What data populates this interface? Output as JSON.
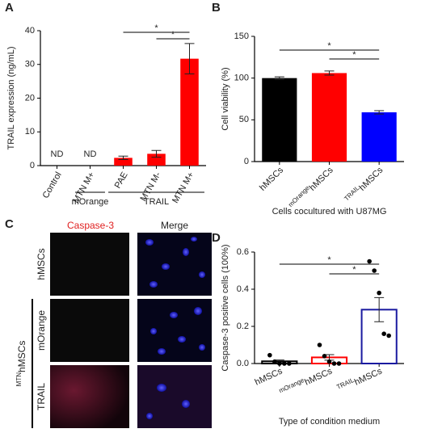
{
  "chart_data": [
    {
      "type": "bar",
      "panel": "A",
      "ylabel": "TRAIL expression (ng/mL)",
      "categories": [
        "Control",
        "MTN M+",
        "PAE",
        "MTN M-",
        "MTN M+"
      ],
      "values": [
        null,
        null,
        2.3,
        3.5,
        31.7
      ],
      "value_labels": [
        "ND",
        "ND",
        null,
        null,
        null
      ],
      "errors": [
        null,
        null,
        0.5,
        1.0,
        4.5
      ],
      "color": "#ff0000",
      "ylim": [
        0,
        40
      ],
      "yticks": [
        0,
        10,
        20,
        30,
        40
      ],
      "groups": [
        {
          "label": "mOrange",
          "from": 1,
          "to": 1
        },
        {
          "label": "TRAIL",
          "from": 2,
          "to": 4
        }
      ],
      "significance": [
        {
          "from": 2,
          "to": 4,
          "label": "*"
        },
        {
          "from": 3,
          "to": 4,
          "label": "*"
        }
      ]
    },
    {
      "type": "bar",
      "panel": "B",
      "ylabel": "Cell viability (%)",
      "xlabel": "Cells cocultured with U87MG",
      "categories": [
        "hMSCs",
        "hMSCs",
        "hMSCs"
      ],
      "category_superscripts": [
        null,
        "mOrange",
        "TRAIL"
      ],
      "values": [
        100,
        106,
        59
      ],
      "errors": [
        1.5,
        2.5,
        2
      ],
      "colors": [
        "#000000",
        "#ff0000",
        "#0000ff"
      ],
      "ylim": [
        0,
        150
      ],
      "yticks": [
        0,
        50,
        100,
        150
      ],
      "significance": [
        {
          "from": 0,
          "to": 2,
          "label": "*"
        },
        {
          "from": 1,
          "to": 2,
          "label": "*"
        }
      ]
    },
    {
      "type": "openbar",
      "panel": "D",
      "ylabel": "Caspase-3 positive cells (100%)",
      "xlabel": "Type of condition medium",
      "categories": [
        "hMSCs",
        "hMSCs",
        "hMSCs"
      ],
      "category_superscripts": [
        null,
        "mOrange",
        "TRAIL"
      ],
      "values": [
        0.012,
        0.033,
        0.29
      ],
      "errors": [
        0.007,
        0.015,
        0.065
      ],
      "colors": [
        "#000000",
        "#ff0000",
        "#1a1aa0"
      ],
      "points": [
        [
          0.045,
          0.01,
          0,
          0,
          0
        ],
        [
          0.1,
          0.04,
          0.01,
          0,
          0
        ],
        [
          0.55,
          0.5,
          0.38,
          0.16,
          0.15
        ]
      ],
      "ylim": [
        0,
        0.6
      ],
      "yticks": [
        {
          "value": 0,
          "label": "0.0"
        },
        0.2,
        0.4,
        0.6
      ],
      "significance": [
        {
          "from": 0,
          "to": 2,
          "label": "*"
        },
        {
          "from": 1,
          "to": 2,
          "label": "*"
        }
      ]
    }
  ],
  "panel_c": {
    "panel": "C",
    "columns": [
      "Caspase-3",
      "Merge"
    ],
    "rows": [
      "hMSCs",
      "mOrange",
      "TRAIL"
    ],
    "group_label": {
      "sup": "MTN",
      "text": "hMSCs"
    }
  }
}
